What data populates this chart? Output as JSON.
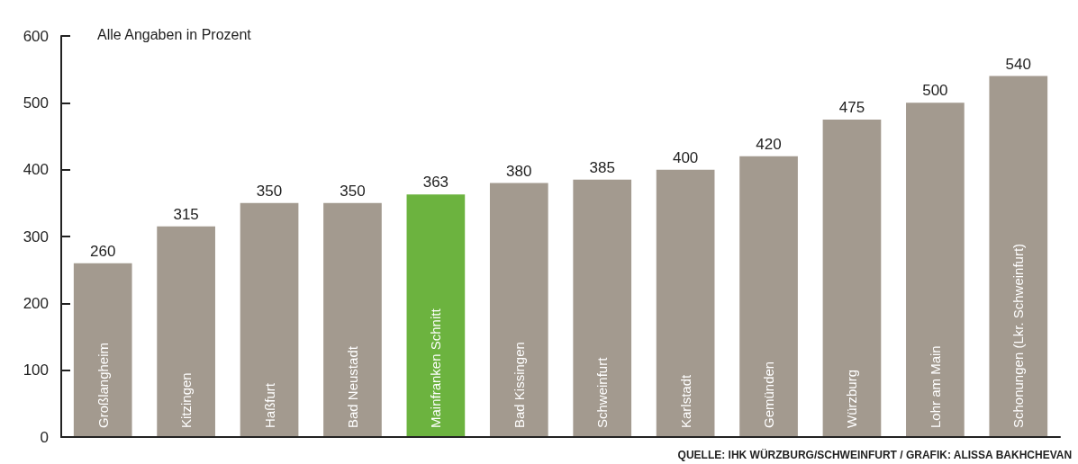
{
  "chart_data": {
    "type": "bar",
    "categories": [
      "Großlangheim",
      "Kitzingen",
      "Haßfurt",
      "Bad Neustadt",
      "Mainfranken Schnitt",
      "Bad Kissingen",
      "Schweinfurt",
      "Karlstadt",
      "Gemünden",
      "Würzburg",
      "Lohr am Main",
      "Schonungen (Lkr. Schweinfurt)"
    ],
    "values": [
      260,
      315,
      350,
      350,
      363,
      380,
      385,
      400,
      420,
      475,
      500,
      540
    ],
    "colors": [
      "#a39a8f",
      "#a39a8f",
      "#a39a8f",
      "#a39a8f",
      "#6cb33f",
      "#a39a8f",
      "#a39a8f",
      "#a39a8f",
      "#a39a8f",
      "#a39a8f",
      "#a39a8f",
      "#a39a8f"
    ],
    "ylim": [
      0,
      600
    ],
    "yticks": [
      0,
      100,
      200,
      300,
      400,
      500,
      600
    ],
    "data_labels": true,
    "grid": false,
    "annotations": [
      "Alle Angaben in Prozent",
      "QUELLE: IHK WÜRZBURG/SCHWEINFURT / GRAFIK: ALISSA BAKHCHEVAN"
    ]
  }
}
